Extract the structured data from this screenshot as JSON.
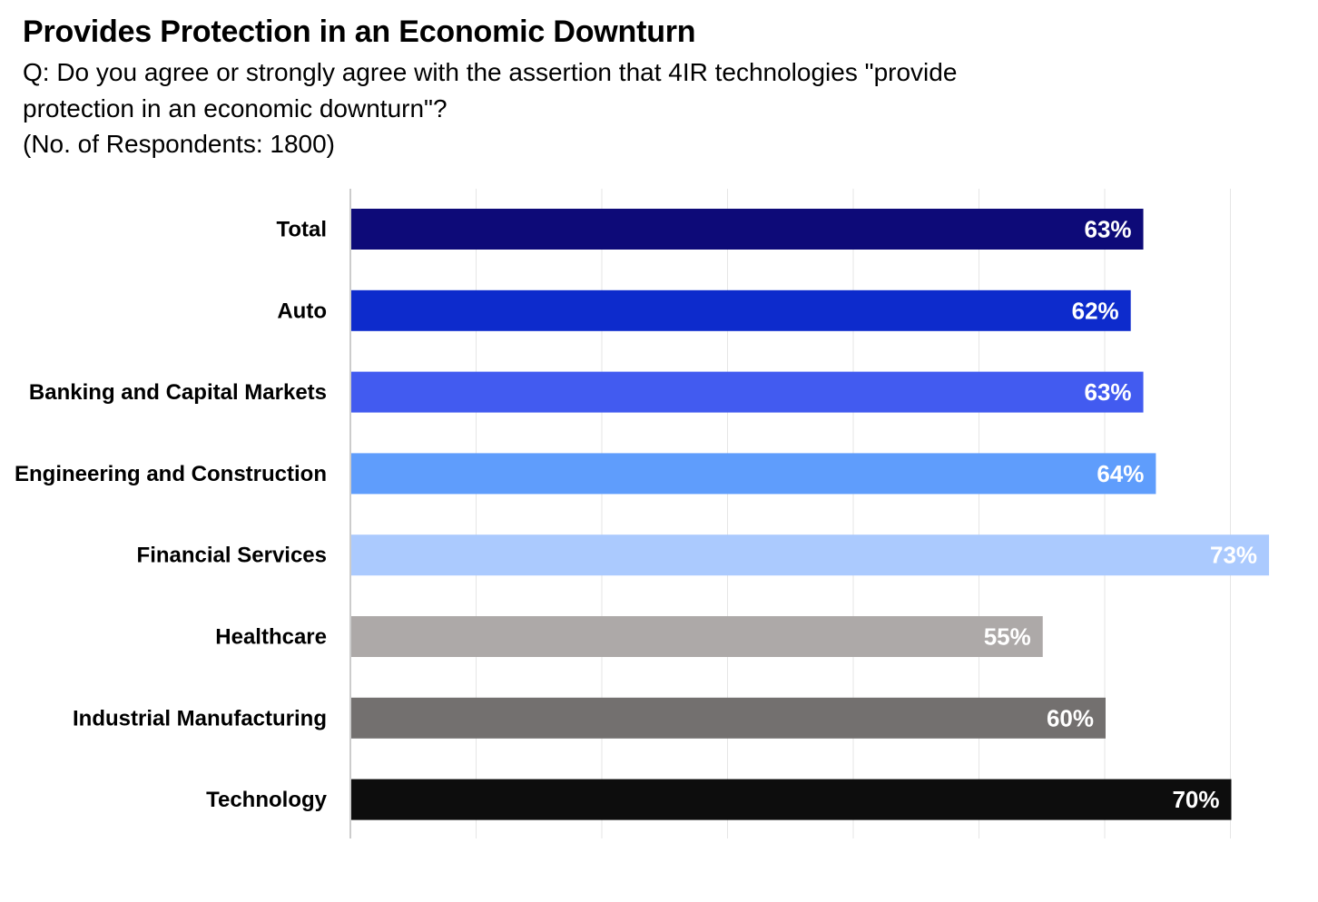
{
  "title": "Provides Protection in an Economic Downturn",
  "subtitle_lines": [
    "Q: Do you agree or strongly agree with the assertion that 4IR technologies \"provide",
    "protection in an economic downturn\"?",
    "(No. of Respondents: 1800)"
  ],
  "chart_data": {
    "type": "bar",
    "orientation": "horizontal",
    "title": "Provides Protection in an Economic Downturn",
    "categories": [
      "Total",
      "Auto",
      "Banking and Capital Markets",
      "Engineering and Construction",
      "Financial Services",
      "Healthcare",
      "Industrial Manufacturing",
      "Technology"
    ],
    "values": [
      63,
      62,
      63,
      64,
      73,
      55,
      60,
      70
    ],
    "value_labels": [
      "63%",
      "62%",
      "63%",
      "64%",
      "73%",
      "55%",
      "60%",
      "70%"
    ],
    "colors": [
      "#0d0a78",
      "#0d2bcc",
      "#425bf0",
      "#5f9dfc",
      "#abcafe",
      "#ada9a8",
      "#73706f",
      "#0d0d0d"
    ],
    "xlim": [
      0,
      75
    ],
    "grid": true,
    "legend": "none",
    "xlabel": "",
    "ylabel": ""
  }
}
